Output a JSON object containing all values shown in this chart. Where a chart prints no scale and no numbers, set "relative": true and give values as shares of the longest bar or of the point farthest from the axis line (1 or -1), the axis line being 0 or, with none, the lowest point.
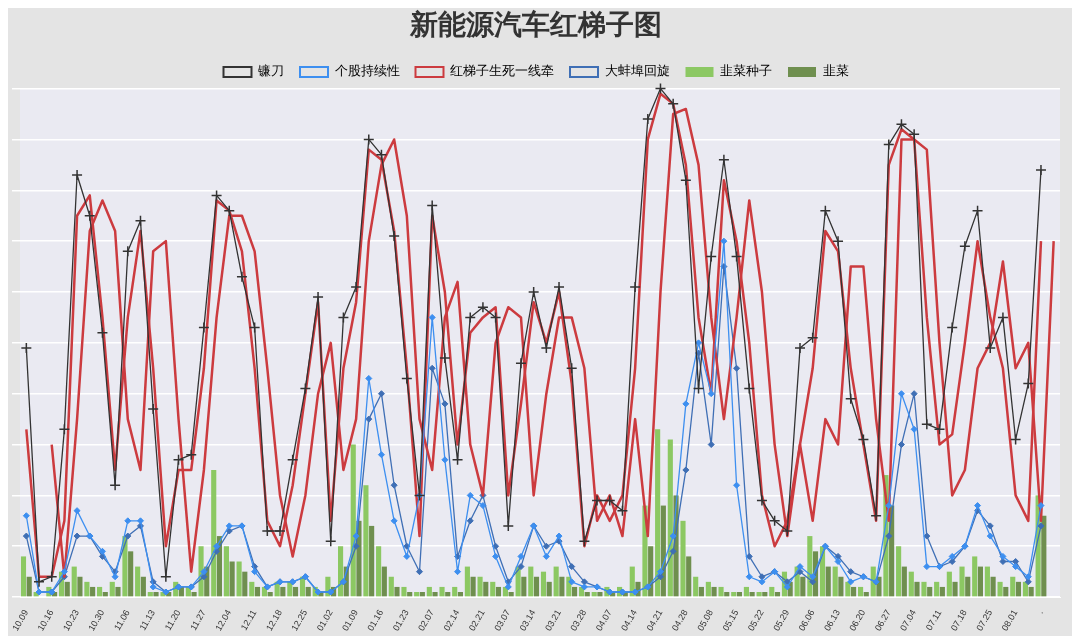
{
  "chart_data": {
    "type": "line",
    "title": "新能源汽车红梯子图",
    "relative": true,
    "grid": "y",
    "legend": "top",
    "categories": [
      "10.09",
      null,
      "10.16",
      null,
      "10.23",
      null,
      "10.30",
      null,
      "11.06",
      null,
      "11.13",
      null,
      "11.20",
      null,
      "11.27",
      null,
      "12.04",
      null,
      "12.11",
      null,
      "12.18",
      null,
      "12.25",
      null,
      "01.02",
      null,
      "01.09",
      null,
      "01.16",
      null,
      "01.23",
      null,
      "02.07",
      null,
      "02.14",
      null,
      "02.21",
      null,
      "03.07",
      null,
      "03.14",
      null,
      "03.21",
      null,
      "03.28",
      null,
      "04.07",
      null,
      "04.14",
      null,
      "04.21",
      null,
      "04.28",
      null,
      "05.08",
      null,
      "05.15",
      null,
      "05.22",
      null,
      "05.29",
      null,
      "06.06",
      null,
      "06.13",
      null,
      "06.20",
      null,
      "06.27",
      null,
      "07.04",
      null,
      "07.11",
      null,
      "07.18",
      null,
      "07.25",
      null,
      "08.01",
      null,
      ".",
      null
    ],
    "series": [
      {
        "name": "镰刀",
        "color": "#333333",
        "marker": "cross",
        "values": [
          0.49,
          0.03,
          0.04,
          0.33,
          0.83,
          0.75,
          0.52,
          0.22,
          0.68,
          0.74,
          0.37,
          0.04,
          0.27,
          0.28,
          0.53,
          0.79,
          0.76,
          0.63,
          0.53,
          0.13,
          0.13,
          0.27,
          0.41,
          0.59,
          0.11,
          0.55,
          0.61,
          0.9,
          0.87,
          0.71,
          0.43,
          0.2,
          0.77,
          0.47,
          0.27,
          0.55,
          0.57,
          0.55,
          0.14,
          0.46,
          0.6,
          0.49,
          0.61,
          0.45,
          0.11,
          0.19,
          0.19,
          0.17,
          0.61,
          0.94,
          1,
          0.97,
          0.82,
          0.41,
          0.67,
          0.86,
          0.67,
          0.41,
          0.19,
          0.15,
          0.13,
          0.49,
          0.51,
          0.76,
          0.7,
          0.39,
          0.31,
          0.16,
          0.89,
          0.93,
          0.91,
          0.34,
          0.33,
          0.53,
          0.69,
          0.76,
          0.49,
          0.55,
          0.31,
          0.42,
          0.84,
          null
        ]
      },
      {
        "name": "个股持续性",
        "color": "#3d8ff0",
        "marker": "diamond",
        "values": [
          0.16,
          0.01,
          0.01,
          0.05,
          0.17,
          0.12,
          0.09,
          0.04,
          0.15,
          0.15,
          0.02,
          0.01,
          0.02,
          0.02,
          0.05,
          0.1,
          0.14,
          0.14,
          0.05,
          0.02,
          0.03,
          0.03,
          0.04,
          0.01,
          0.01,
          0.03,
          0.12,
          0.43,
          0.28,
          0.15,
          0.08,
          0.2,
          0.55,
          0.27,
          0.05,
          0.2,
          0.18,
          0.08,
          0.02,
          0.08,
          0.14,
          0.08,
          0.12,
          0.03,
          0.02,
          0.02,
          0.01,
          0.01,
          0.01,
          0.02,
          0.05,
          0.12,
          0.38,
          0.5,
          0.4,
          0.7,
          0.22,
          0.04,
          0.03,
          0.05,
          0.02,
          0.06,
          0.04,
          0.1,
          0.07,
          0.03,
          0.04,
          0.03,
          0.18,
          0.4,
          0.33,
          0.06,
          0.06,
          0.08,
          0.1,
          0.18,
          0.12,
          0.08,
          0.06,
          0.04,
          0.18,
          null
        ]
      },
      {
        "name": "红梯子生死一线牵",
        "color": "#cc3b3f",
        "marker": "none",
        "values": [
          0.33,
          0.04,
          0.04,
          0.15,
          0.75,
          0.79,
          0.55,
          0.25,
          0.55,
          0.72,
          0.45,
          0.1,
          0.25,
          0.25,
          0.45,
          0.78,
          0.76,
          0.68,
          0.45,
          0.15,
          0.1,
          0.22,
          0.4,
          0.58,
          0.15,
          0.45,
          0.58,
          0.88,
          0.86,
          0.72,
          0.45,
          0.12,
          0.75,
          0.6,
          0.3,
          0.52,
          0.55,
          0.57,
          0.2,
          0.38,
          0.58,
          0.5,
          0.6,
          0.42,
          0.1,
          0.2,
          0.15,
          0.2,
          0.45,
          0.9,
          0.99,
          0.97,
          0.85,
          0.55,
          0.4,
          0.82,
          0.7,
          0.5,
          0.2,
          0.1,
          0.15,
          0.3,
          0.45,
          0.72,
          0.68,
          0.45,
          0.3,
          0.15,
          0.85,
          0.92,
          0.9,
          0.55,
          0.3,
          0.32,
          0.5,
          0.7,
          0.55,
          0.45,
          0.2,
          0.15,
          0.7,
          null
        ]
      },
      {
        "color": "#cc3b3f",
        "marker": "none",
        "values": [
          null,
          null,
          0.3,
          0.04,
          0.35,
          0.72,
          0.78,
          0.72,
          0.35,
          0.25,
          0.68,
          0.7,
          0.35,
          0.05,
          0.25,
          0.55,
          0.75,
          0.75,
          0.68,
          0.45,
          0.2,
          0.08,
          0.2,
          0.4,
          0.5,
          0.25,
          0.35,
          0.7,
          0.85,
          0.9,
          0.75,
          0.35,
          0.25,
          0.55,
          0.62,
          0.3,
          0.2,
          0.5,
          0.57,
          0.55,
          0.2,
          0.4,
          0.55,
          0.55,
          0.45,
          0.15,
          0.2,
          0.12,
          0.35,
          0.12,
          0.6,
          0.95,
          0.96,
          0.85,
          0.55,
          0.35,
          0.55,
          0.78,
          0.6,
          0.3,
          0.12,
          0.3,
          0.15,
          0.35,
          0.3,
          0.65,
          0.65,
          0.35,
          0.15,
          0.9,
          0.9,
          0.88,
          0.5,
          0.2,
          0.25,
          0.45,
          0.5,
          0.66,
          0.45,
          0.5,
          0.15,
          0.7
        ]
      },
      {
        "name": "大蚌埠回旋",
        "color": "#3f6fb5",
        "marker": "diamond",
        "values": [
          0.12,
          0.01,
          0.01,
          0.04,
          0.12,
          0.12,
          0.08,
          0.05,
          0.12,
          0.14,
          0.03,
          0.01,
          0.02,
          0.02,
          0.04,
          0.09,
          0.13,
          0.14,
          0.06,
          0.02,
          0.03,
          0.03,
          0.04,
          0.01,
          0.01,
          0.03,
          0.1,
          0.35,
          0.4,
          0.22,
          0.1,
          0.05,
          0.45,
          0.38,
          0.08,
          0.15,
          0.2,
          0.1,
          0.03,
          0.06,
          0.14,
          0.1,
          0.11,
          0.06,
          0.03,
          0.02,
          0.01,
          0.01,
          0.01,
          0.02,
          0.04,
          0.09,
          0.25,
          0.48,
          0.3,
          0.65,
          0.45,
          0.08,
          0.04,
          0.05,
          0.03,
          0.05,
          0.03,
          0.1,
          0.08,
          0.05,
          0.04,
          0.03,
          0.12,
          0.3,
          0.4,
          0.12,
          0.06,
          0.07,
          0.1,
          0.17,
          0.14,
          0.07,
          0.07,
          0.03,
          0.14,
          null
        ]
      },
      {
        "name": "韭菜种子",
        "type": "bar",
        "color": "#8cc863",
        "values": [
          0.08,
          0.01,
          0.02,
          0.05,
          0.06,
          0.03,
          0.02,
          0.03,
          0.12,
          0.06,
          0.01,
          0.01,
          0.03,
          0.02,
          0.1,
          0.25,
          0.1,
          0.07,
          0.03,
          0.02,
          0.03,
          0.03,
          0.04,
          0.02,
          0.04,
          0.1,
          0.3,
          0.22,
          0.1,
          0.04,
          0.02,
          0.01,
          0.02,
          0.02,
          0.02,
          0.06,
          0.04,
          0.03,
          0.02,
          0.06,
          0.06,
          0.05,
          0.06,
          0.04,
          0.02,
          0.01,
          0.02,
          0.02,
          0.06,
          0.18,
          0.33,
          0.31,
          0.15,
          0.04,
          0.03,
          0.02,
          0.01,
          0.02,
          0.01,
          0.02,
          0.05,
          0.06,
          0.12,
          0.1,
          0.06,
          0.03,
          0.02,
          0.06,
          0.24,
          0.1,
          0.05,
          0.03,
          0.03,
          0.05,
          0.06,
          0.08,
          0.06,
          0.03,
          0.04,
          0.03,
          0.2,
          null
        ]
      },
      {
        "name": "韭菜",
        "type": "bar",
        "color": "#6f8f4f",
        "values": [
          0.04,
          0,
          0.01,
          0.03,
          0.04,
          0.02,
          0.01,
          0.02,
          0.09,
          0.04,
          0.01,
          0.01,
          0.02,
          0.01,
          0.06,
          0.12,
          0.07,
          0.05,
          0.02,
          0.01,
          0.02,
          0.02,
          0.02,
          0.01,
          0.02,
          0.06,
          0.15,
          0.14,
          0.06,
          0.02,
          0.01,
          0.01,
          0.01,
          0.01,
          0.01,
          0.04,
          0.03,
          0.02,
          0.01,
          0.04,
          0.04,
          0.03,
          0.04,
          0.02,
          0.01,
          0.01,
          0.01,
          0.01,
          0.03,
          0.1,
          0.18,
          0.2,
          0.08,
          0.02,
          0.02,
          0.01,
          0.01,
          0.01,
          0.01,
          0.01,
          0.03,
          0.04,
          0.09,
          0.06,
          0.04,
          0.02,
          0.01,
          0.04,
          0.18,
          0.06,
          0.03,
          0.02,
          0.02,
          0.03,
          0.04,
          0.06,
          0.04,
          0.02,
          0.03,
          0.02,
          0.16,
          null
        ]
      }
    ]
  }
}
